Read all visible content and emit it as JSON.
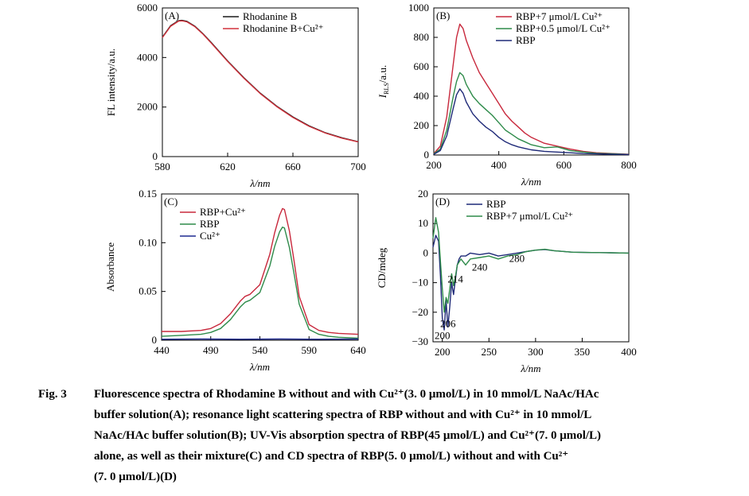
{
  "chart_data": [
    {
      "type": "line",
      "panel_label": "(A)",
      "xlabel": "λ/nm",
      "ylabel": "FL intensity/a.u.",
      "xlim": [
        580,
        700
      ],
      "ylim": [
        0,
        6000
      ],
      "xticks": [
        "580",
        "620",
        "660",
        "700"
      ],
      "yticks": [
        "0",
        "2000",
        "4000",
        "6000"
      ],
      "legend_position": "top-right",
      "series": [
        {
          "name": "Rhodanine B",
          "color": "#1a1a1a",
          "x": [
            580,
            585,
            590,
            592,
            595,
            600,
            605,
            610,
            620,
            630,
            640,
            650,
            660,
            670,
            680,
            690,
            700
          ],
          "y": [
            4820,
            5280,
            5490,
            5500,
            5460,
            5260,
            4950,
            4600,
            3860,
            3180,
            2560,
            2040,
            1600,
            1240,
            960,
            760,
            600
          ]
        },
        {
          "name": "Rhodanine B+Cu²⁺",
          "color": "#d2323c",
          "x": [
            580,
            585,
            590,
            592,
            595,
            600,
            605,
            610,
            620,
            630,
            640,
            650,
            660,
            670,
            680,
            690,
            700
          ],
          "y": [
            4800,
            5260,
            5470,
            5480,
            5440,
            5240,
            4930,
            4580,
            3840,
            3160,
            2540,
            2020,
            1580,
            1220,
            945,
            745,
            590
          ]
        }
      ]
    },
    {
      "type": "line",
      "panel_label": "(B)",
      "xlabel": "λ/nm",
      "ylabel_main": "I",
      "ylabel_sub": "RLS",
      "ylabel_suffix": "/a.u.",
      "xlim": [
        200,
        800
      ],
      "ylim": [
        0,
        1000
      ],
      "xticks": [
        "200",
        "400",
        "600",
        "800"
      ],
      "yticks": [
        "0",
        "200",
        "400",
        "600",
        "800",
        "1000"
      ],
      "legend_position": "top-right",
      "series": [
        {
          "name": "RBP+7 μmol/L Cu²⁺",
          "color": "#c8283c",
          "x": [
            200,
            220,
            240,
            260,
            270,
            280,
            290,
            300,
            320,
            340,
            360,
            380,
            400,
            420,
            440,
            460,
            480,
            500,
            540,
            580,
            620,
            660,
            700,
            750,
            800
          ],
          "y": [
            10,
            60,
            260,
            620,
            800,
            890,
            860,
            780,
            660,
            560,
            490,
            420,
            350,
            280,
            230,
            190,
            150,
            120,
            80,
            60,
            40,
            25,
            15,
            10,
            5
          ]
        },
        {
          "name": "RBP+0.5 μmol/L Cu²⁺",
          "color": "#2e8b4a",
          "x": [
            200,
            220,
            240,
            260,
            270,
            280,
            290,
            300,
            320,
            340,
            360,
            380,
            400,
            420,
            440,
            460,
            480,
            500,
            540,
            580,
            620,
            660,
            700,
            750,
            800
          ],
          "y": [
            8,
            40,
            170,
            400,
            500,
            560,
            540,
            480,
            400,
            350,
            310,
            270,
            220,
            170,
            140,
            110,
            90,
            70,
            50,
            55,
            30,
            20,
            12,
            8,
            4
          ]
        },
        {
          "name": "RBP",
          "color": "#1f2a78",
          "x": [
            200,
            220,
            240,
            260,
            270,
            280,
            290,
            300,
            320,
            340,
            360,
            380,
            400,
            420,
            440,
            460,
            480,
            500,
            540,
            580,
            620,
            660,
            700,
            750,
            800
          ],
          "y": [
            5,
            30,
            130,
            320,
            410,
            450,
            420,
            360,
            280,
            230,
            190,
            160,
            120,
            90,
            70,
            55,
            45,
            35,
            25,
            20,
            15,
            10,
            8,
            5,
            3
          ]
        }
      ]
    },
    {
      "type": "line",
      "panel_label": "(C)",
      "xlabel": "λ/nm",
      "ylabel": "Absorbance",
      "xlim": [
        440,
        640
      ],
      "ylim": [
        0,
        0.15
      ],
      "xticks": [
        "440",
        "490",
        "540",
        "590",
        "640"
      ],
      "yticks": [
        "0",
        "0.05",
        "0.10",
        "0.15"
      ],
      "legend_position": "top-left",
      "series": [
        {
          "name": "RBP+Cu²⁺",
          "color": "#c8283c",
          "x": [
            440,
            460,
            480,
            490,
            500,
            510,
            520,
            525,
            530,
            540,
            550,
            555,
            560,
            563,
            565,
            570,
            575,
            580,
            590,
            600,
            610,
            620,
            640
          ],
          "y": [
            0.009,
            0.009,
            0.01,
            0.012,
            0.017,
            0.027,
            0.04,
            0.045,
            0.047,
            0.057,
            0.088,
            0.11,
            0.128,
            0.135,
            0.134,
            0.112,
            0.08,
            0.045,
            0.016,
            0.01,
            0.008,
            0.007,
            0.006
          ]
        },
        {
          "name": "RBP",
          "color": "#2e8b4a",
          "x": [
            440,
            460,
            480,
            490,
            500,
            510,
            520,
            525,
            530,
            540,
            550,
            555,
            560,
            563,
            565,
            570,
            575,
            580,
            590,
            600,
            610,
            620,
            640
          ],
          "y": [
            0.004,
            0.005,
            0.006,
            0.008,
            0.012,
            0.021,
            0.034,
            0.039,
            0.041,
            0.049,
            0.076,
            0.096,
            0.111,
            0.116,
            0.115,
            0.095,
            0.067,
            0.037,
            0.011,
            0.006,
            0.004,
            0.003,
            0.002
          ]
        },
        {
          "name": "Cu²⁺",
          "color": "#1f2a90",
          "x": [
            440,
            480,
            520,
            560,
            600,
            640
          ],
          "y": [
            0.001,
            0.0012,
            0.001,
            0.0012,
            0.001,
            0.0012
          ]
        }
      ]
    },
    {
      "type": "line",
      "panel_label": "(D)",
      "xlabel": "λ/nm",
      "ylabel": "CD/mdeg",
      "xlim": [
        190,
        400
      ],
      "ylim": [
        -30,
        20
      ],
      "xticks": [
        "200",
        "250",
        "300",
        "350",
        "400"
      ],
      "yticks": [
        "-30",
        "-20",
        "-10",
        "0",
        "10",
        "20"
      ],
      "legend_position": "top-center",
      "annotations": [
        {
          "text": "200",
          "x": 200,
          "y": -29
        },
        {
          "text": "206",
          "x": 206,
          "y": -25
        },
        {
          "text": "214",
          "x": 214,
          "y": -10
        },
        {
          "text": "240",
          "x": 240,
          "y": -6
        },
        {
          "text": "280",
          "x": 280,
          "y": -3
        }
      ],
      "series": [
        {
          "name": "RBP",
          "color": "#1f2a78",
          "x": [
            190,
            193,
            196,
            198,
            200,
            202,
            204,
            206,
            208,
            210,
            212,
            214,
            216,
            218,
            220,
            225,
            230,
            240,
            250,
            260,
            270,
            280,
            290,
            300,
            310,
            320,
            340,
            360,
            380,
            400
          ],
          "y": [
            2,
            6,
            4,
            -8,
            -22,
            -26,
            -16,
            -25,
            -18,
            -10,
            -14,
            -9,
            -4,
            -2,
            -1,
            -1,
            0,
            -0.5,
            0,
            -1,
            -0.5,
            0,
            0.5,
            1,
            1.2,
            0.8,
            0.3,
            0.2,
            0.1,
            0
          ]
        },
        {
          "name": "RBP+7 μmol/L Cu²⁺",
          "color": "#2e8b4a",
          "x": [
            190,
            193,
            196,
            198,
            200,
            202,
            204,
            206,
            208,
            210,
            212,
            214,
            216,
            218,
            220,
            225,
            230,
            240,
            250,
            260,
            270,
            280,
            290,
            300,
            310,
            320,
            340,
            360,
            380,
            400
          ],
          "y": [
            5,
            12,
            7,
            -3,
            -12,
            -20,
            -15,
            -17,
            -12,
            -7,
            -11,
            -8,
            -4,
            -3,
            -2,
            -4,
            -2,
            -1.5,
            -1,
            -2,
            -1,
            -0.5,
            0.5,
            1,
            1.3,
            0.8,
            0.3,
            0.2,
            0.1,
            0
          ]
        }
      ]
    }
  ],
  "caption": {
    "label": "Fig. 3",
    "lines": [
      "Fluorescence spectra of Rhodamine B without and with Cu²⁺(3. 0 μmol/L) in 10 mmol/L NaAc/HAc",
      "buffer solution(A); resonance light scattering spectra of RBP without and with Cu²⁺ in 10 mmol/L",
      "NaAc/HAc buffer solution(B); UV-Vis absorption spectra of RBP(45 μmol/L) and Cu²⁺(7. 0 μmol/L)",
      "alone, as well as their mixture(C) and CD spectra of RBP(5. 0 μmol/L) without and with Cu²⁺",
      "(7. 0 μmol/L)(D)"
    ]
  }
}
